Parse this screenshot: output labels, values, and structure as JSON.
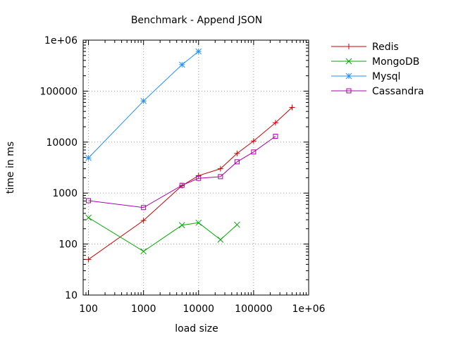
{
  "chart_data": {
    "type": "line",
    "title": "Benchmark - Append JSON",
    "xlabel": "load size",
    "ylabel": "time in ms",
    "x_scale": "log",
    "y_scale": "log",
    "xlim": [
      80,
      1000000
    ],
    "ylim": [
      10,
      1000000
    ],
    "grid": true,
    "legend_position": "top-right-outside",
    "x_ticks": [
      100,
      1000,
      10000,
      100000,
      1000000
    ],
    "x_tick_labels": [
      "100",
      "1000",
      "10000",
      "100000",
      "1e+06"
    ],
    "y_ticks": [
      10,
      100,
      1000,
      10000,
      100000,
      1000000
    ],
    "y_tick_labels": [
      "10",
      "100",
      "1000",
      "10000",
      "100000",
      "1e+06"
    ],
    "series": [
      {
        "name": "Redis",
        "color": "#cc0000",
        "marker": "plus",
        "x": [
          100,
          1000,
          5000,
          10000,
          25000,
          50000,
          100000,
          250000,
          500000
        ],
        "y": [
          50,
          290,
          1400,
          2200,
          3000,
          6000,
          10500,
          24000,
          48000
        ]
      },
      {
        "name": "MongoDB",
        "color": "#00aa00",
        "marker": "cross",
        "x": [
          100,
          1000,
          5000,
          10000,
          25000,
          50000
        ],
        "y": [
          330,
          72,
          235,
          262,
          122,
          240
        ]
      },
      {
        "name": "Mysql",
        "color": "#1e90ff",
        "marker": "star",
        "x": [
          100,
          1000,
          5000,
          10000
        ],
        "y": [
          4900,
          64000,
          330000,
          600000
        ]
      },
      {
        "name": "Cassandra",
        "color": "#aa00aa",
        "marker": "square",
        "x": [
          100,
          1000,
          5000,
          10000,
          25000,
          50000,
          100000,
          250000
        ],
        "y": [
          710,
          520,
          1420,
          1950,
          2100,
          4100,
          6400,
          13000
        ]
      }
    ]
  }
}
